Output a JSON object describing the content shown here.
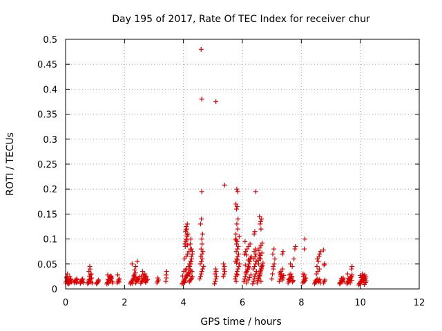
{
  "chart_data": {
    "type": "scatter",
    "title": "Day 195 of 2017, Rate Of TEC Index for receiver chur",
    "xlabel": "GPS time / hours",
    "ylabel": "ROTI / TECUs",
    "xlim": [
      0,
      12
    ],
    "ylim": [
      0,
      0.5
    ],
    "xticks": [
      "0",
      "2",
      "4",
      "6",
      "8",
      "10",
      "12"
    ],
    "yticks": [
      "0",
      "0.05",
      "0.1",
      "0.15",
      "0.2",
      "0.25",
      "0.3",
      "0.35",
      "0.4",
      "0.45",
      "0.5"
    ],
    "grid": true,
    "marker": "plus",
    "color": "#dd0000",
    "series": [
      {
        "x": [
          0.0,
          0.02,
          0.05,
          0.08,
          0.1,
          0.12,
          0.15,
          0.18,
          0.2,
          0.03,
          0.07,
          0.11,
          0.14,
          0.06,
          0.09,
          0.13,
          0.17,
          0.04,
          0.3,
          0.32,
          0.35,
          0.38,
          0.4,
          0.33,
          0.36,
          0.31,
          0.39,
          0.5,
          0.52,
          0.55,
          0.58,
          0.6,
          0.53,
          0.56,
          0.51,
          0.57,
          0.75,
          0.78,
          0.8,
          0.82,
          0.85,
          0.88,
          0.9,
          0.77,
          0.81,
          0.84,
          0.87,
          0.79,
          0.83,
          0.86,
          0.8,
          0.82,
          1.05,
          1.08,
          1.1,
          1.12,
          1.07,
          1.11,
          1.4,
          1.42,
          1.45,
          1.48,
          1.5,
          1.52,
          1.55,
          1.58,
          1.6,
          1.43,
          1.47,
          1.51,
          1.56,
          1.44,
          1.49,
          1.53,
          1.46,
          1.54,
          1.75,
          1.78,
          1.8,
          1.83,
          1.77,
          1.81,
          2.2,
          2.22,
          2.25,
          2.28,
          2.3,
          2.32,
          2.35,
          2.38,
          2.4,
          2.42,
          2.45,
          2.48,
          2.5,
          2.23,
          2.27,
          2.31,
          2.36,
          2.41,
          2.46,
          2.34,
          2.38,
          2.26,
          2.43,
          2.33,
          2.37,
          2.55,
          2.58,
          2.6,
          2.62,
          2.65,
          2.68,
          2.7,
          2.72,
          2.75,
          2.78,
          2.57,
          2.63,
          2.69,
          2.74,
          2.61,
          2.66,
          2.71,
          3.1,
          3.12,
          3.15,
          3.13,
          3.4,
          3.42,
          3.41,
          3.43,
          3.95,
          3.98,
          4.0,
          4.02,
          4.05,
          4.08,
          4.1,
          4.12,
          4.15,
          4.18,
          4.2,
          4.22,
          4.25,
          4.28,
          4.3,
          3.97,
          4.01,
          4.06,
          4.11,
          4.16,
          4.21,
          4.26,
          4.03,
          4.09,
          4.14,
          4.19,
          4.24,
          4.04,
          4.07,
          4.13,
          4.17,
          4.23,
          4.05,
          4.08,
          4.1,
          4.12,
          4.15,
          4.07,
          4.11,
          4.09,
          4.13,
          4.06,
          4.14,
          4.1,
          4.12,
          4.08,
          4.2,
          4.22,
          4.25,
          4.28,
          4.3,
          4.27,
          4.23,
          4.26,
          4.29,
          4.21,
          4.24,
          4.27,
          4.3,
          4.25,
          4.55,
          4.58,
          4.6,
          4.62,
          4.65,
          4.68,
          4.57,
          4.61,
          4.64,
          4.59,
          4.63,
          4.66,
          4.6,
          4.63,
          4.62,
          4.65,
          4.58,
          4.61,
          4.62,
          4.6,
          4.62,
          5.05,
          5.08,
          5.1,
          5.12,
          5.07,
          5.11,
          5.09,
          5.1,
          5.35,
          5.38,
          5.4,
          5.37,
          5.39,
          5.36,
          5.4,
          5.75,
          5.78,
          5.8,
          5.82,
          5.85,
          5.88,
          5.9,
          5.77,
          5.81,
          5.84,
          5.87,
          5.79,
          5.83,
          5.86,
          5.8,
          5.82,
          5.76,
          5.89,
          5.78,
          5.84,
          5.81,
          5.85,
          5.79,
          5.83,
          5.8,
          5.82,
          5.78,
          5.84,
          5.81,
          5.79,
          5.83,
          5.8,
          6.05,
          6.08,
          6.1,
          6.12,
          6.15,
          6.18,
          6.2,
          6.22,
          6.25,
          6.28,
          6.3,
          6.07,
          6.11,
          6.16,
          6.21,
          6.26,
          6.09,
          6.14,
          6.19,
          6.24,
          6.29,
          6.12,
          6.17,
          6.23,
          6.1,
          6.2,
          6.27,
          6.13,
          6.35,
          6.38,
          6.4,
          6.42,
          6.45,
          6.48,
          6.37,
          6.41,
          6.44,
          6.47,
          6.39,
          6.43,
          6.46,
          6.4,
          6.44,
          6.5,
          6.52,
          6.55,
          6.58,
          6.6,
          6.62,
          6.65,
          6.68,
          6.7,
          6.53,
          6.57,
          6.61,
          6.66,
          6.54,
          6.59,
          6.63,
          6.67,
          6.56,
          6.6,
          6.64,
          6.55,
          6.62,
          6.58,
          6.65,
          6.6,
          6.57,
          6.63,
          6.4,
          6.42,
          6.45,
          6.6,
          6.62,
          6.65,
          6.58,
          6.63,
          7.0,
          7.02,
          7.05,
          7.08,
          7.1,
          7.03,
          7.07,
          7.04,
          7.25,
          7.28,
          7.3,
          7.32,
          7.35,
          7.38,
          7.4,
          7.27,
          7.31,
          7.36,
          7.29,
          7.34,
          7.35,
          7.38,
          7.55,
          7.58,
          7.6,
          7.62,
          7.65,
          7.68,
          7.7,
          7.72,
          7.57,
          7.61,
          7.66,
          7.71,
          7.59,
          7.64,
          7.69,
          7.63,
          7.75,
          7.78,
          7.8,
          8.05,
          8.08,
          8.1,
          8.12,
          8.15,
          8.07,
          8.11,
          8.09,
          8.13,
          8.06,
          8.1,
          8.12,
          8.45,
          8.48,
          8.5,
          8.52,
          8.55,
          8.58,
          8.6,
          8.62,
          8.65,
          8.47,
          8.51,
          8.56,
          8.61,
          8.53,
          8.58,
          8.54,
          8.6,
          8.62,
          8.65,
          8.75,
          8.75,
          8.78,
          8.8,
          8.77,
          8.79,
          9.3,
          9.32,
          9.35,
          9.38,
          9.4,
          9.42,
          9.45,
          9.33,
          9.37,
          9.41,
          9.36,
          9.39,
          9.55,
          9.58,
          9.6,
          9.62,
          9.65,
          9.68,
          9.7,
          9.72,
          9.57,
          9.61,
          9.66,
          9.71,
          9.63,
          9.59,
          9.67,
          9.7,
          9.72,
          9.95,
          9.98,
          10.0,
          10.02,
          10.05,
          10.08,
          10.1,
          10.12,
          10.15,
          10.18,
          10.2,
          9.97,
          10.01,
          10.06,
          10.11,
          10.16,
          10.03,
          10.09,
          10.14,
          10.19,
          10.07,
          10.13,
          10.04,
          10.1,
          10.17,
          10.0,
          10.12
        ],
        "y": [
          0.012,
          0.015,
          0.018,
          0.02,
          0.01,
          0.013,
          0.016,
          0.019,
          0.014,
          0.022,
          0.011,
          0.017,
          0.025,
          0.03,
          0.014,
          0.012,
          0.02,
          0.024,
          0.012,
          0.015,
          0.018,
          0.02,
          0.014,
          0.016,
          0.013,
          0.017,
          0.019,
          0.011,
          0.014,
          0.017,
          0.02,
          0.013,
          0.016,
          0.019,
          0.012,
          0.015,
          0.01,
          0.013,
          0.015,
          0.018,
          0.02,
          0.022,
          0.012,
          0.016,
          0.025,
          0.028,
          0.03,
          0.035,
          0.04,
          0.014,
          0.019,
          0.045,
          0.01,
          0.013,
          0.016,
          0.018,
          0.012,
          0.015,
          0.01,
          0.013,
          0.016,
          0.018,
          0.02,
          0.022,
          0.025,
          0.015,
          0.012,
          0.028,
          0.014,
          0.017,
          0.021,
          0.019,
          0.024,
          0.026,
          0.011,
          0.023,
          0.012,
          0.015,
          0.018,
          0.02,
          0.028,
          0.014,
          0.01,
          0.013,
          0.016,
          0.018,
          0.02,
          0.022,
          0.025,
          0.012,
          0.015,
          0.017,
          0.019,
          0.021,
          0.024,
          0.014,
          0.011,
          0.026,
          0.023,
          0.018,
          0.016,
          0.038,
          0.045,
          0.05,
          0.055,
          0.028,
          0.032,
          0.011,
          0.014,
          0.016,
          0.018,
          0.02,
          0.022,
          0.015,
          0.013,
          0.017,
          0.019,
          0.025,
          0.028,
          0.03,
          0.024,
          0.035,
          0.021,
          0.026,
          0.012,
          0.015,
          0.018,
          0.022,
          0.015,
          0.022,
          0.028,
          0.035,
          0.01,
          0.012,
          0.015,
          0.018,
          0.02,
          0.022,
          0.025,
          0.028,
          0.03,
          0.033,
          0.014,
          0.017,
          0.019,
          0.021,
          0.024,
          0.026,
          0.035,
          0.038,
          0.04,
          0.045,
          0.05,
          0.055,
          0.06,
          0.065,
          0.07,
          0.075,
          0.08,
          0.013,
          0.016,
          0.027,
          0.032,
          0.037,
          0.09,
          0.095,
          0.1,
          0.105,
          0.11,
          0.115,
          0.12,
          0.125,
          0.13,
          0.085,
          0.088,
          0.098,
          0.108,
          0.118,
          0.03,
          0.04,
          0.05,
          0.06,
          0.07,
          0.08,
          0.09,
          0.025,
          0.035,
          0.045,
          0.055,
          0.065,
          0.075,
          0.1,
          0.02,
          0.025,
          0.03,
          0.035,
          0.04,
          0.045,
          0.05,
          0.055,
          0.06,
          0.065,
          0.07,
          0.075,
          0.08,
          0.09,
          0.1,
          0.11,
          0.13,
          0.14,
          0.38,
          0.48,
          0.195,
          0.01,
          0.015,
          0.02,
          0.025,
          0.03,
          0.035,
          0.04,
          0.375,
          0.025,
          0.03,
          0.035,
          0.04,
          0.045,
          0.05,
          0.208,
          0.02,
          0.025,
          0.03,
          0.035,
          0.04,
          0.045,
          0.05,
          0.055,
          0.06,
          0.065,
          0.07,
          0.075,
          0.08,
          0.085,
          0.09,
          0.095,
          0.1,
          0.105,
          0.11,
          0.12,
          0.13,
          0.14,
          0.015,
          0.028,
          0.16,
          0.165,
          0.17,
          0.195,
          0.2,
          0.098,
          0.058,
          0.052,
          0.015,
          0.02,
          0.025,
          0.03,
          0.035,
          0.04,
          0.045,
          0.05,
          0.055,
          0.06,
          0.065,
          0.07,
          0.075,
          0.08,
          0.085,
          0.09,
          0.095,
          0.012,
          0.018,
          0.023,
          0.028,
          0.033,
          0.038,
          0.043,
          0.048,
          0.058,
          0.062,
          0.068,
          0.01,
          0.015,
          0.02,
          0.025,
          0.03,
          0.035,
          0.04,
          0.045,
          0.05,
          0.055,
          0.06,
          0.065,
          0.07,
          0.075,
          0.08,
          0.012,
          0.017,
          0.022,
          0.027,
          0.032,
          0.037,
          0.042,
          0.047,
          0.052,
          0.057,
          0.062,
          0.067,
          0.072,
          0.077,
          0.082,
          0.087,
          0.092,
          0.02,
          0.03,
          0.04,
          0.05,
          0.06,
          0.07,
          0.045,
          0.035,
          0.025,
          0.015,
          0.11,
          0.115,
          0.195,
          0.13,
          0.135,
          0.14,
          0.145,
          0.12,
          0.02,
          0.03,
          0.04,
          0.05,
          0.06,
          0.07,
          0.08,
          0.045,
          0.015,
          0.02,
          0.025,
          0.03,
          0.018,
          0.022,
          0.027,
          0.032,
          0.035,
          0.04,
          0.028,
          0.024,
          0.07,
          0.075,
          0.012,
          0.015,
          0.018,
          0.02,
          0.022,
          0.025,
          0.014,
          0.017,
          0.019,
          0.021,
          0.024,
          0.016,
          0.028,
          0.03,
          0.045,
          0.05,
          0.06,
          0.08,
          0.085,
          0.012,
          0.015,
          0.018,
          0.02,
          0.022,
          0.025,
          0.028,
          0.014,
          0.017,
          0.03,
          0.08,
          0.1,
          0.01,
          0.013,
          0.015,
          0.018,
          0.02,
          0.014,
          0.017,
          0.019,
          0.012,
          0.016,
          0.03,
          0.035,
          0.04,
          0.045,
          0.055,
          0.06,
          0.065,
          0.07,
          0.075,
          0.078,
          0.012,
          0.015,
          0.018,
          0.048,
          0.05,
          0.01,
          0.013,
          0.016,
          0.018,
          0.02,
          0.022,
          0.015,
          0.012,
          0.017,
          0.019,
          0.021,
          0.014,
          0.01,
          0.013,
          0.016,
          0.018,
          0.02,
          0.022,
          0.025,
          0.028,
          0.03,
          0.015,
          0.012,
          0.017,
          0.019,
          0.021,
          0.024,
          0.04,
          0.045,
          0.008,
          0.01,
          0.012,
          0.015,
          0.018,
          0.02,
          0.022,
          0.025,
          0.028,
          0.013,
          0.016,
          0.011,
          0.014,
          0.017,
          0.019,
          0.021,
          0.023,
          0.026,
          0.009,
          0.024,
          0.03,
          0.012,
          0.015,
          0.018,
          0.02,
          0.027,
          0.022
        ]
      }
    ]
  }
}
